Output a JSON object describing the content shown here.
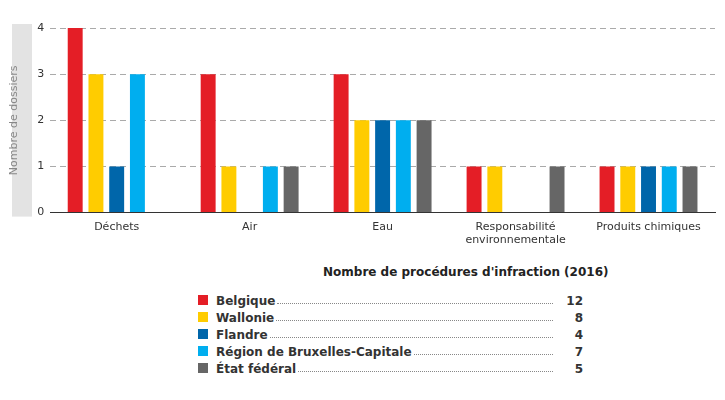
{
  "chart_data": {
    "type": "bar",
    "y_label": "Nombre de dossiers",
    "categories": [
      "Déchets",
      "Air",
      "Eau",
      "Responsabilité environnementale",
      "Produits chimiques"
    ],
    "series": [
      {
        "name": "Belgique",
        "color": "#e41e26",
        "values": [
          4,
          3,
          3,
          1,
          1
        ],
        "total": 12
      },
      {
        "name": "Wallonie",
        "color": "#ffcc00",
        "values": [
          3,
          1,
          2,
          1,
          1
        ],
        "total": 8
      },
      {
        "name": "Flandre",
        "color": "#0066aa",
        "values": [
          1,
          0,
          2,
          0,
          1
        ],
        "total": 4
      },
      {
        "name": "Région de Bruxelles-Capitale",
        "color": "#00aeef",
        "values": [
          3,
          1,
          2,
          0,
          1
        ],
        "total": 7
      },
      {
        "name": "État fédéral",
        "color": "#666666",
        "values": [
          0,
          1,
          2,
          1,
          1
        ],
        "total": 5
      }
    ],
    "ylim": [
      0,
      4
    ],
    "yticks": [
      0,
      1,
      2,
      3,
      4
    ],
    "grid": true,
    "legend": "bottom",
    "legend_title": "Nombre de procédures d'infraction (2016)"
  }
}
